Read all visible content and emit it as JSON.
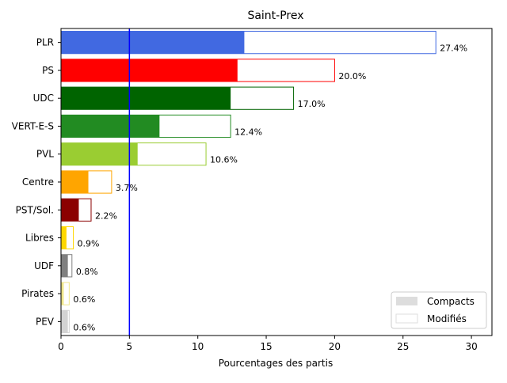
{
  "chart_data": {
    "type": "bar",
    "orientation": "horizontal",
    "title": "Saint-Prex",
    "xlabel": "Pourcentages des partis",
    "ylabel": "",
    "xlim": [
      0,
      31.5
    ],
    "xticks": [
      0,
      5,
      10,
      15,
      20,
      25,
      30
    ],
    "threshold_line": {
      "x": 5,
      "color": "#0000ff"
    },
    "legend": {
      "position": "lower-right",
      "entries": [
        "Compacts",
        "Modifiés"
      ]
    },
    "grid": false,
    "categories": [
      "PLR",
      "PS",
      "UDC",
      "VERT-E-S",
      "PVL",
      "Centre",
      "PST/Sol.",
      "Libres",
      "UDF",
      "Pirates",
      "PEV"
    ],
    "series": [
      {
        "name": "Compacts",
        "values": [
          13.4,
          12.9,
          12.4,
          7.2,
          5.6,
          2.0,
          1.3,
          0.4,
          0.5,
          0.2,
          0.5
        ]
      },
      {
        "name": "Modifiés",
        "values": [
          27.4,
          20.0,
          17.0,
          12.4,
          10.6,
          3.7,
          2.2,
          0.9,
          0.8,
          0.6,
          0.6
        ]
      }
    ],
    "data_labels": [
      "27.4%",
      "20.0%",
      "17.0%",
      "12.4%",
      "10.6%",
      "3.7%",
      "2.2%",
      "0.9%",
      "0.8%",
      "0.6%",
      "0.6%"
    ],
    "colors": [
      "#4169e1",
      "#ff0000",
      "#006400",
      "#228b22",
      "#9acd32",
      "#ffa500",
      "#8b0000",
      "#ffd700",
      "#808080",
      "#f0e68c",
      "#d3d3d3"
    ],
    "legend_compacts_color": "#dddddd",
    "legend_modifies_color": "#dddddd"
  }
}
